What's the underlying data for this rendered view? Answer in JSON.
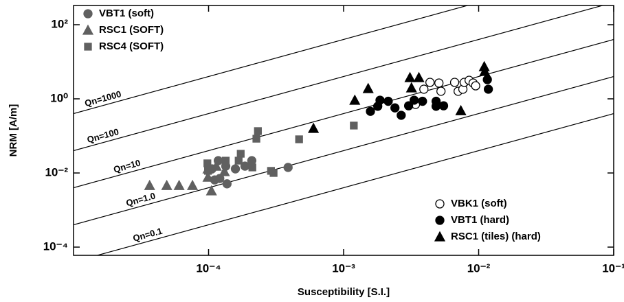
{
  "chart_data": {
    "type": "scatter",
    "xlabel": "Susceptibility [S.I.]",
    "ylabel": "NRM [A/m]",
    "xscale": "log",
    "yscale": "log",
    "xlim": [
      1e-05,
      0.1
    ],
    "ylim": [
      6e-05,
      330
    ],
    "xticks": [
      {
        "value": 0.0001,
        "label": "10⁻⁴"
      },
      {
        "value": 0.001,
        "label": "10⁻³"
      },
      {
        "value": 0.01,
        "label": "10⁻²"
      },
      {
        "value": 0.1,
        "label": "10⁻¹"
      }
    ],
    "yticks": [
      {
        "value": 0.0001,
        "label": "10⁻⁴"
      },
      {
        "value": 0.01,
        "label": "10⁻²"
      },
      {
        "value": 1,
        "label": "10⁰"
      },
      {
        "value": 100,
        "label": "10²"
      }
    ],
    "reference_lines": [
      {
        "label": "Qn=1000",
        "x": [
          1e-05,
          0.1
        ],
        "values": [
          0.4,
          4000
        ]
      },
      {
        "label": "Qn=100",
        "x": [
          1e-05,
          0.1
        ],
        "values": [
          0.04,
          400
        ]
      },
      {
        "label": "Qn=10",
        "x": [
          1e-05,
          0.1
        ],
        "values": [
          0.004,
          40
        ]
      },
      {
        "label": "Qn=1.0",
        "x": [
          1e-05,
          0.1
        ],
        "values": [
          0.0004,
          4
        ]
      },
      {
        "label": "Qn=0.1",
        "x": [
          1e-05,
          0.1
        ],
        "values": [
          4e-05,
          0.4
        ]
      }
    ],
    "series": [
      {
        "name": "VBT1 (soft)",
        "marker": "circle",
        "color": "#606060",
        "filled": true,
        "legend": "upper left",
        "x": [
          0.000118,
          0.000134,
          0.000158,
          0.000186,
          0.000209,
          0.000106,
          0.000111,
          0.000121,
          0.000137,
          0.000388
        ],
        "values": [
          0.0215,
          0.0153,
          0.0129,
          0.0153,
          0.0215,
          0.0129,
          0.0065,
          0.0071,
          0.0051,
          0.0141
        ]
      },
      {
        "name": "RSC1 (SOFT)",
        "marker": "triangle",
        "color": "#606060",
        "filled": true,
        "legend": "upper left",
        "x": [
          3.66e-05,
          4.9e-05,
          6.05e-05,
          7.6e-05,
          9.9e-05,
          0.000105,
          0.000114,
          0.000131,
          9.9e-05
        ],
        "values": [
          0.0046,
          0.0046,
          0.0046,
          0.0046,
          0.0077,
          0.0033,
          0.0153,
          0.0109,
          0.0129
        ]
      },
      {
        "name": "RSC4 (SOFT)",
        "marker": "square",
        "color": "#606060",
        "filled": true,
        "legend": "upper left",
        "x": [
          9.8e-05,
          9.9e-05,
          0.000134,
          0.000173,
          0.000167,
          0.000211,
          0.000232,
          0.000226,
          0.00029,
          0.000303,
          0.000468,
          0.00119
        ],
        "values": [
          0.0182,
          0.0114,
          0.0215,
          0.033,
          0.0215,
          0.0141,
          0.135,
          0.084,
          0.0114,
          0.01,
          0.081,
          0.19
        ]
      },
      {
        "name": "VBK1 (soft)",
        "marker": "circle",
        "color": "#000000",
        "filled": false,
        "legend": "lower right",
        "x": [
          0.00393,
          0.00436,
          0.00508,
          0.00526,
          0.00664,
          0.00705,
          0.00764,
          0.00782,
          0.0085,
          0.0091,
          0.0095,
          0.00341
        ],
        "values": [
          1.82,
          2.78,
          2.67,
          1.6,
          2.78,
          1.6,
          1.82,
          2.78,
          3.16,
          2.67,
          2.25,
          0.71
        ]
      },
      {
        "name": "VBT1 (hard)",
        "marker": "circle",
        "color": "#000000",
        "filled": true,
        "legend": "lower right",
        "x": [
          0.00158,
          0.00179,
          0.00186,
          0.00214,
          0.0024,
          0.00267,
          0.00303,
          0.00333,
          0.00384,
          0.00484,
          0.00484,
          0.0055,
          0.0116,
          0.0118
        ],
        "values": [
          0.46,
          0.63,
          0.92,
          0.86,
          0.57,
          0.36,
          0.65,
          0.92,
          0.86,
          0.86,
          0.63,
          0.65,
          3.3,
          1.82
        ]
      },
      {
        "name": "RSC1 (tiles) (hard)",
        "marker": "triangle",
        "color": "#000000",
        "filled": true,
        "legend": "lower right",
        "x": [
          0.000598,
          0.00121,
          0.00152,
          0.0031,
          0.00361,
          0.00318,
          0.00738,
          0.011,
          0.0111
        ],
        "values": [
          0.16,
          0.92,
          1.9,
          3.75,
          3.75,
          1.98,
          0.48,
          7.4,
          5.5
        ]
      }
    ]
  }
}
